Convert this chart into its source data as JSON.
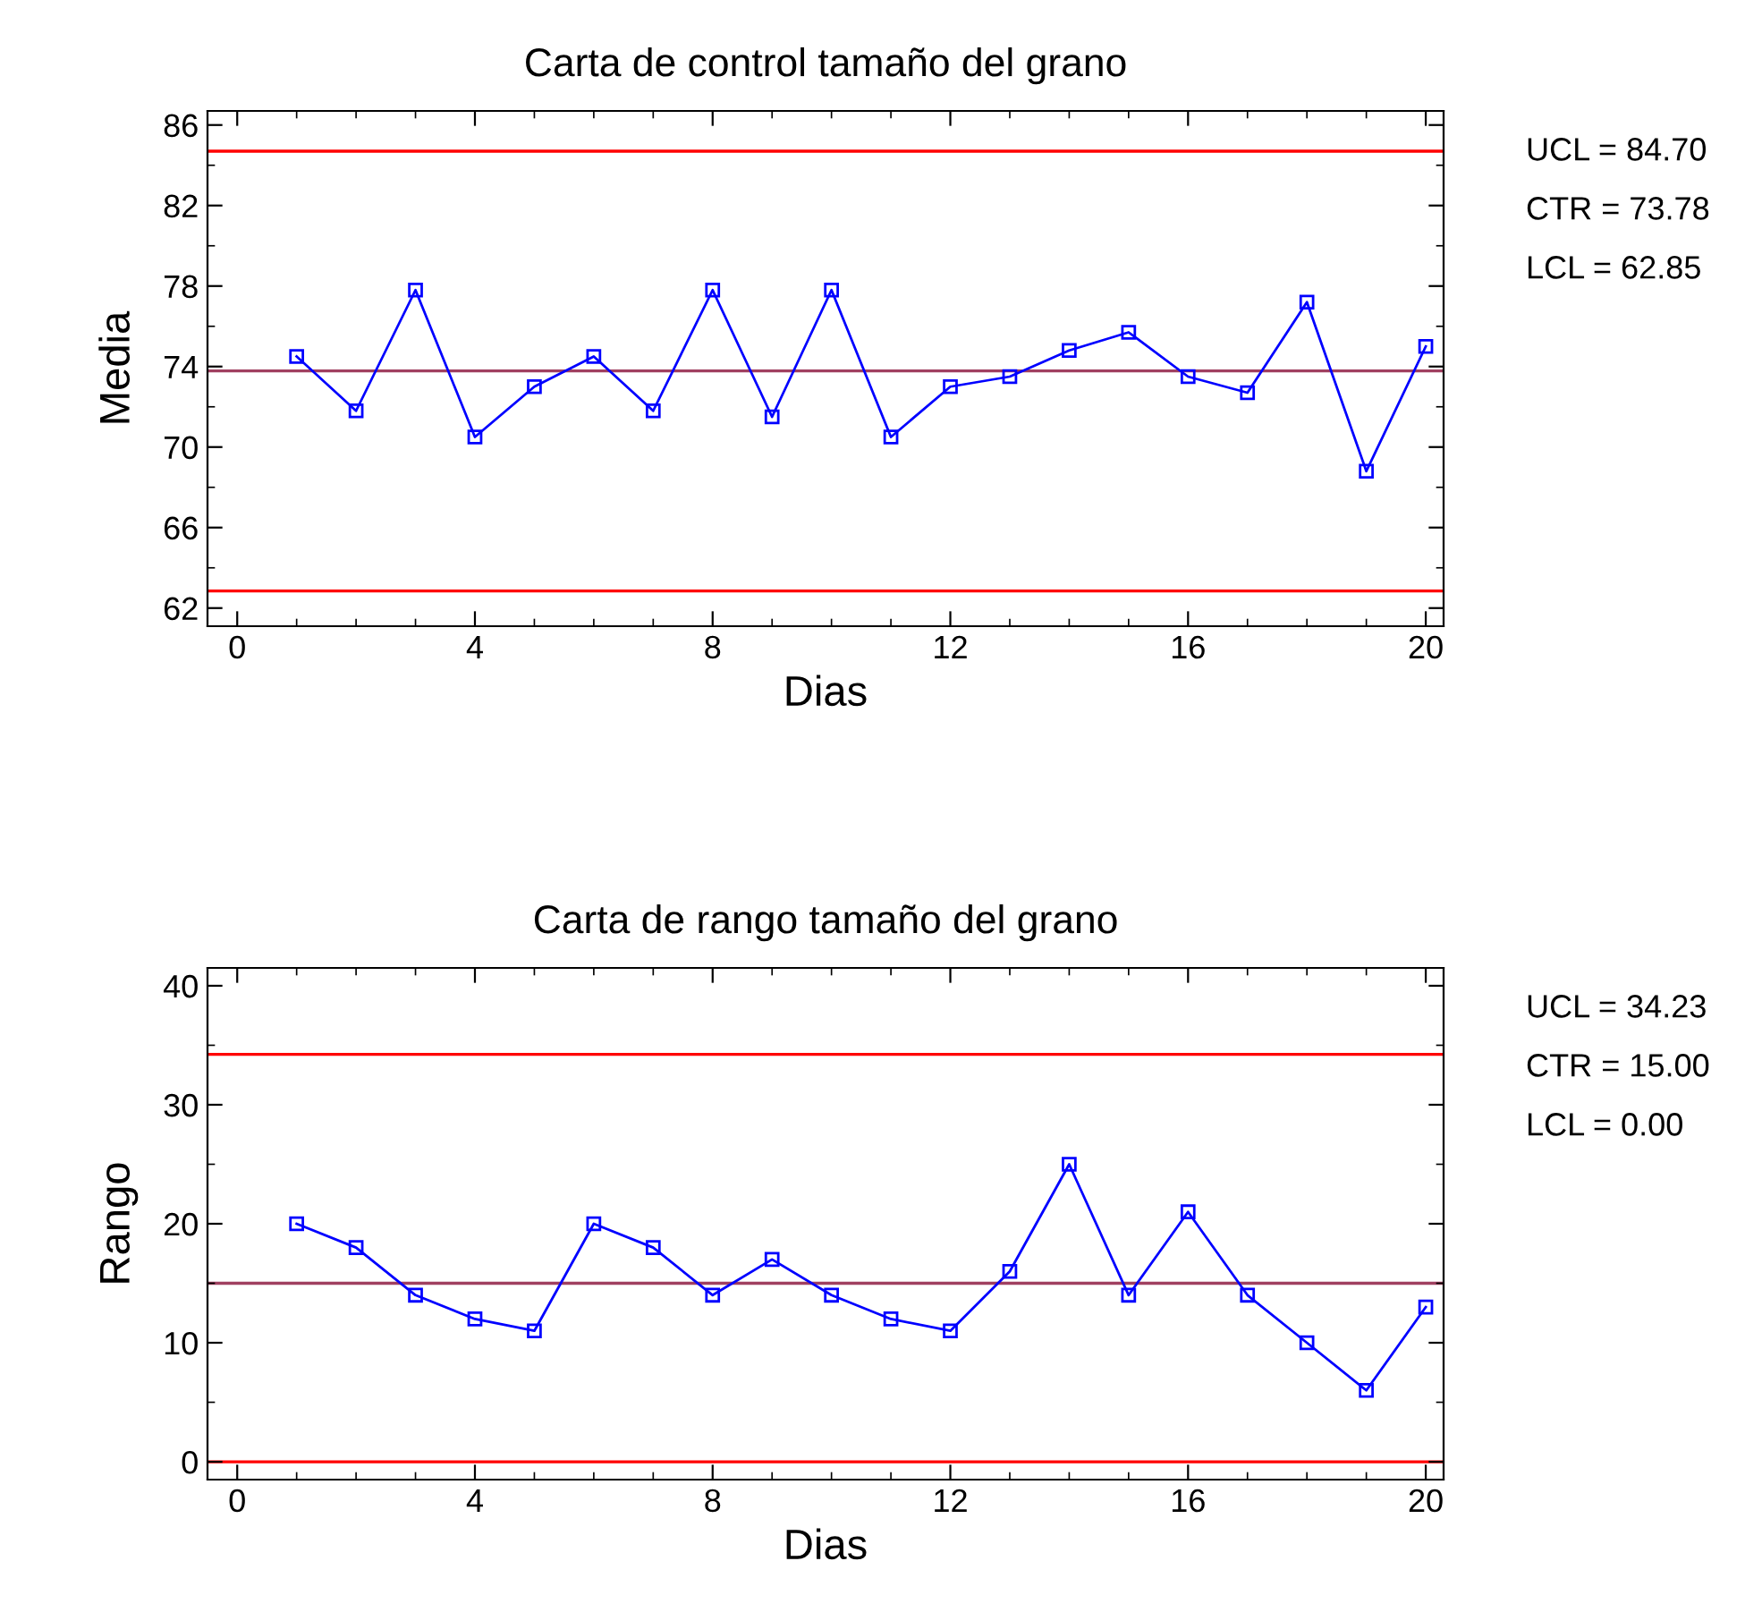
{
  "chart_data": [
    {
      "type": "line",
      "title": "Carta de control tamaño del grano",
      "xlabel": "Dias",
      "ylabel": "Media",
      "x": [
        1,
        2,
        3,
        4,
        5,
        6,
        7,
        8,
        9,
        10,
        11,
        12,
        13,
        14,
        15,
        16,
        17,
        18,
        19,
        20
      ],
      "series": [
        {
          "color": "#0000ff",
          "values": [
            74.5,
            71.8,
            77.8,
            70.5,
            73.0,
            74.5,
            71.8,
            77.8,
            71.5,
            77.8,
            70.5,
            73.0,
            73.5,
            74.8,
            75.7,
            73.5,
            72.7,
            77.2,
            68.8,
            75.0
          ]
        }
      ],
      "marker": "square",
      "xlim": [
        -0.5,
        20.3
      ],
      "xticks": [
        0,
        4,
        8,
        12,
        16,
        20
      ],
      "ylim": [
        61.1,
        86.7
      ],
      "yticks": [
        62,
        66,
        70,
        74,
        78,
        82,
        86
      ],
      "ref_lines": [
        {
          "axis": "y",
          "value": 84.7,
          "color": "#ff0000"
        },
        {
          "axis": "y",
          "value": 73.78,
          "color": "#a04060"
        },
        {
          "axis": "y",
          "value": 62.85,
          "color": "#ff0000"
        }
      ],
      "annotations": [
        "UCL = 84.70",
        "CTR = 73.78",
        "LCL = 62.85"
      ],
      "grid": false,
      "legend": false
    },
    {
      "type": "line",
      "title": "Carta de rango tamaño del grano",
      "xlabel": "Dias",
      "ylabel": "Rango",
      "x": [
        1,
        2,
        3,
        4,
        5,
        6,
        7,
        8,
        9,
        10,
        11,
        12,
        13,
        14,
        15,
        16,
        17,
        18,
        19,
        20
      ],
      "series": [
        {
          "color": "#0000ff",
          "values": [
            20,
            18,
            14,
            12,
            11,
            20,
            18,
            14,
            17,
            14,
            12,
            11,
            16,
            25,
            14,
            21,
            14,
            10,
            6,
            13
          ]
        }
      ],
      "marker": "square",
      "xlim": [
        -0.5,
        20.3
      ],
      "xticks": [
        0,
        4,
        8,
        12,
        16,
        20
      ],
      "ylim": [
        -1.5,
        41.5
      ],
      "yticks": [
        0,
        10,
        20,
        30,
        40
      ],
      "ref_lines": [
        {
          "axis": "y",
          "value": 34.23,
          "color": "#ff0000"
        },
        {
          "axis": "y",
          "value": 15.0,
          "color": "#a04060"
        },
        {
          "axis": "y",
          "value": 0.0,
          "color": "#ff0000"
        }
      ],
      "annotations": [
        "UCL = 34.23",
        "CTR = 15.00",
        "LCL = 0.00"
      ],
      "grid": false,
      "legend": false
    }
  ]
}
